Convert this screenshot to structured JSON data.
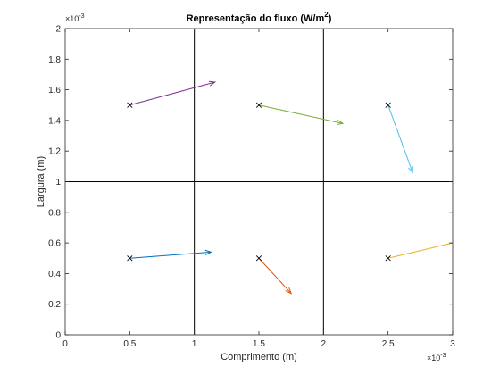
{
  "chart_data": {
    "type": "quiver",
    "title": "Representação do fluxo (W/m",
    "title_superscript": "2",
    "title_suffix": ")",
    "xlabel": "Comprimento (m)",
    "ylabel": "Largura (m)",
    "x_multiplier": "×10",
    "x_multiplier_exp": "-3",
    "y_multiplier": "×10",
    "y_multiplier_exp": "-3",
    "xlim": [
      0,
      3
    ],
    "ylim": [
      0,
      2
    ],
    "x_ticks": [
      0,
      0.5,
      1,
      1.5,
      2,
      2.5,
      3
    ],
    "x_tick_labels": [
      "0",
      "0.5",
      "1",
      "1.5",
      "2",
      "2.5",
      "3"
    ],
    "y_ticks": [
      0,
      0.2,
      0.4,
      0.6,
      0.8,
      1,
      1.2,
      1.4,
      1.6,
      1.8,
      2
    ],
    "y_tick_labels": [
      "0",
      "0.2",
      "0.4",
      "0.6",
      "0.8",
      "1",
      "1.2",
      "1.4",
      "1.6",
      "1.8",
      "2"
    ],
    "grid": false,
    "partition_lines": {
      "vertical_x": [
        1,
        2
      ],
      "horizontal_y": [
        1
      ]
    },
    "arrows": [
      {
        "x": 0.5,
        "y": 0.5,
        "u": 0.63,
        "v": 0.04,
        "color": "#0072BD"
      },
      {
        "x": 1.5,
        "y": 0.5,
        "u": 0.25,
        "v": -0.23,
        "color": "#D95319"
      },
      {
        "x": 2.5,
        "y": 0.5,
        "u": 0.55,
        "v": 0.11,
        "color": "#EDB120"
      },
      {
        "x": 0.5,
        "y": 1.5,
        "u": 0.66,
        "v": 0.15,
        "color": "#7E2F8E"
      },
      {
        "x": 1.5,
        "y": 1.5,
        "u": 0.65,
        "v": -0.12,
        "color": "#77AC30"
      },
      {
        "x": 2.5,
        "y": 1.5,
        "u": 0.19,
        "v": -0.44,
        "color": "#4DBEEE"
      }
    ]
  }
}
